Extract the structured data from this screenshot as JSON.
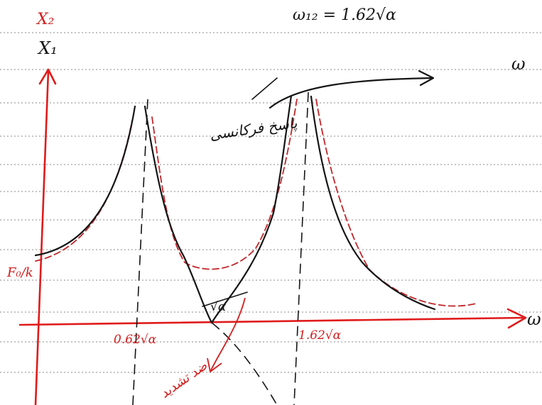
{
  "labels": {
    "x2": "X₂",
    "x1": "X₁",
    "omega12": "ω₁₂ = 1.62√α",
    "omega_top": "ω",
    "omega_axis": "ω",
    "f0k": "F₀/k",
    "low_freq": "0.62√α",
    "sqrt_alpha": "√α",
    "high_freq": "1.62√α",
    "response_note": "پاسخ فرکانسی",
    "antiresonance_note": "ضد تشدید"
  }
}
